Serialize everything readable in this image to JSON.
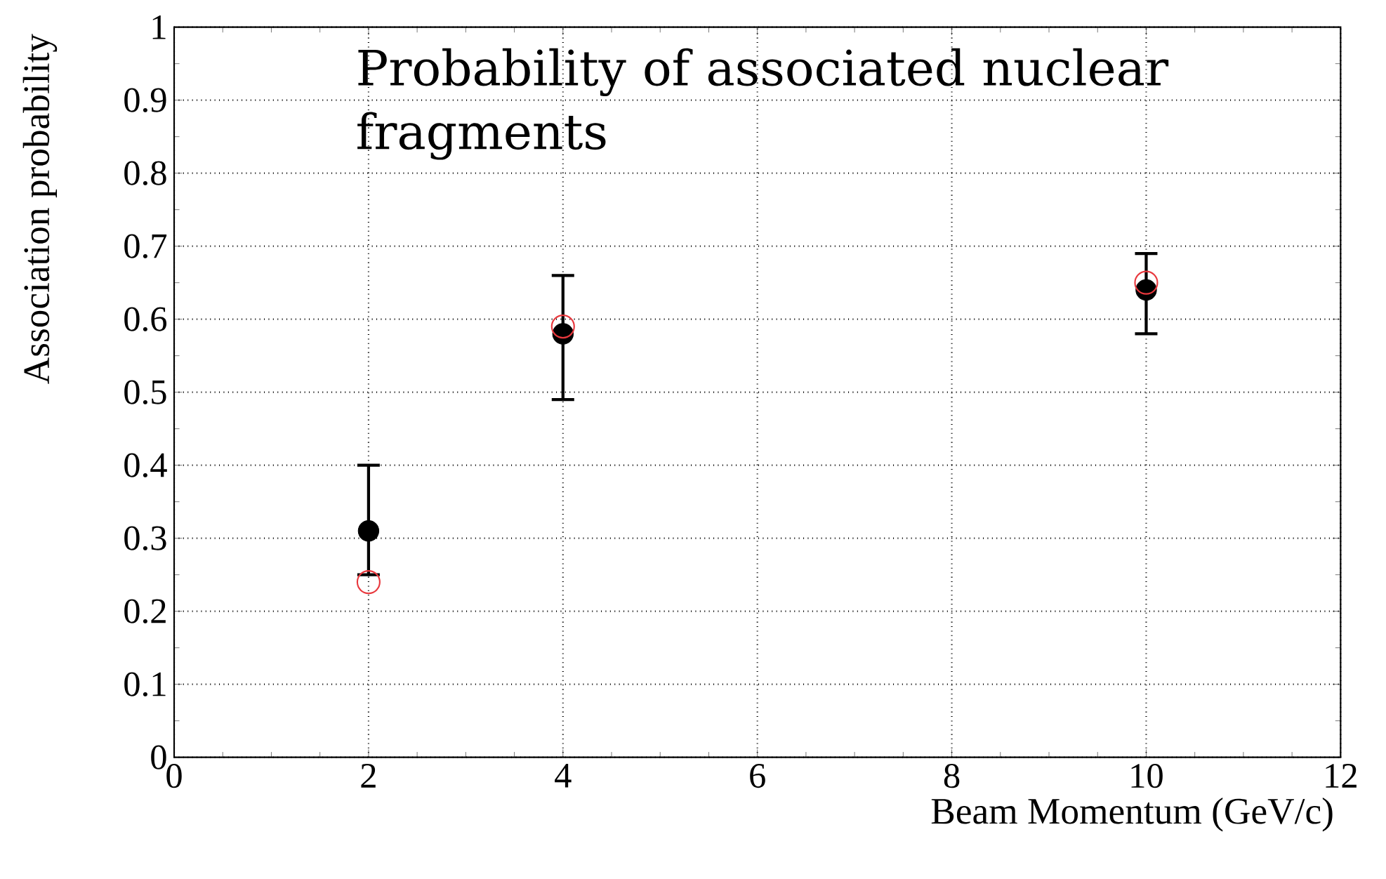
{
  "chart_data": {
    "type": "scatter",
    "xlabel": "Beam Momentum (GeV/c)",
    "ylabel": "Association probability",
    "annotations": [
      "Probability of associated nuclear fragments"
    ],
    "x": [
      2,
      4,
      10
    ],
    "series": [
      {
        "color": "#000000",
        "values": [
          0.31,
          0.58,
          0.64
        ],
        "errors": [
          [
            0.25,
            0.4
          ],
          [
            0.49,
            0.66
          ],
          [
            0.58,
            0.69
          ]
        ]
      },
      {
        "color": "#e8383d",
        "values": [
          0.24,
          0.59,
          0.65
        ]
      }
    ],
    "xlim": [
      0,
      12
    ],
    "ylim": [
      0,
      1
    ],
    "xticks": [
      0,
      2,
      4,
      6,
      8,
      10,
      12
    ],
    "yticks": [
      0,
      0.1,
      0.2,
      0.3,
      0.4,
      0.5,
      0.6,
      0.7,
      0.8,
      0.9,
      1
    ],
    "grid": true,
    "marker": "circle"
  }
}
